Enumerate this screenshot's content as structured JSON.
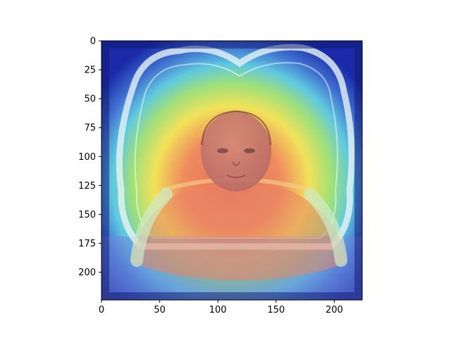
{
  "chart_data": {
    "type": "heatmap",
    "title": "",
    "xlabel": "",
    "ylabel": "",
    "image_size": [
      224,
      224
    ],
    "xlim": [
      0,
      224
    ],
    "ylim": [
      224,
      0
    ],
    "x_ticks": [
      0,
      50,
      100,
      150,
      200
    ],
    "y_ticks": [
      0,
      25,
      50,
      75,
      100,
      125,
      150,
      175,
      200
    ],
    "x_tick_labels": [
      "0",
      "50",
      "100",
      "150",
      "200"
    ],
    "y_tick_labels": [
      "0",
      "25",
      "50",
      "75",
      "100",
      "125",
      "150",
      "175",
      "200"
    ],
    "colormap": "jet",
    "overlay": "attention heatmap over a grayscale photograph of an infant lying on a ruffled pillow",
    "heat_peak": [
      112,
      140
    ],
    "grid": false,
    "colors": {
      "background": "#ffffff",
      "axis": "#000000",
      "cold": "#1a2aa8",
      "cool": "#5fc8e0",
      "warm": "#f2e25a",
      "hot": "#e8705a"
    }
  }
}
